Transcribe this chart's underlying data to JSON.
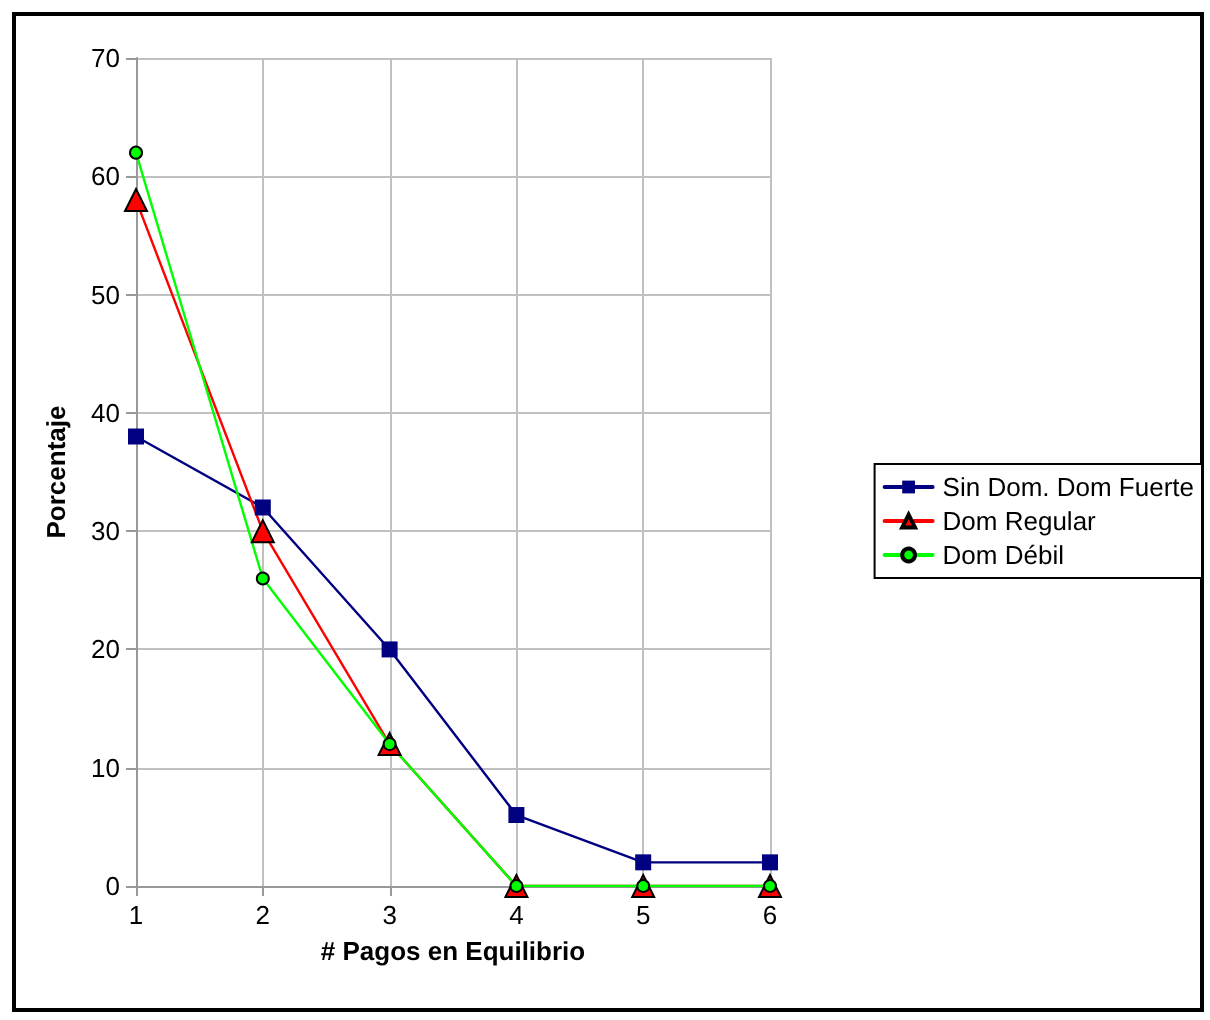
{
  "chart_data": {
    "type": "line",
    "xlabel": "# Pagos en Equilibrio",
    "ylabel": "Porcentaje",
    "x": [
      1,
      2,
      3,
      4,
      5,
      6
    ],
    "xlim": [
      1,
      6
    ],
    "xticks": [
      1,
      2,
      3,
      4,
      5,
      6
    ],
    "ylim": [
      0,
      70
    ],
    "yticks": [
      0,
      10,
      20,
      30,
      40,
      50,
      60,
      70
    ],
    "grid": true,
    "legend": "right",
    "line_style": "solid",
    "series": [
      {
        "name": "Sin Dom. Dom Fuerte",
        "color": "#000080",
        "marker": "square",
        "values": [
          38,
          32,
          20,
          6,
          2,
          2
        ]
      },
      {
        "name": "Dom Regular",
        "color": "#ff0000",
        "marker": "triangle",
        "values": [
          58,
          30,
          12,
          0,
          0,
          0
        ]
      },
      {
        "name": "Dom Débil",
        "color": "#00ff00",
        "marker": "circle",
        "values": [
          62,
          26,
          12,
          0,
          0,
          0
        ]
      }
    ]
  }
}
